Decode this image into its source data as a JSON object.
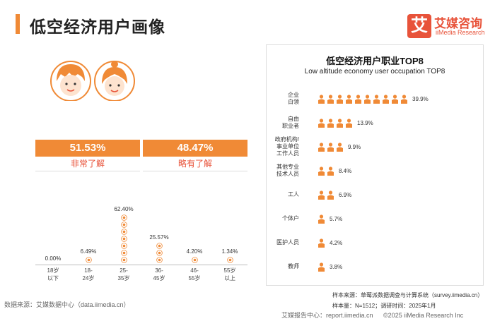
{
  "header": {
    "title": "低空经济用户画像",
    "logo_mark": "艾",
    "logo_cn": "艾媒咨询",
    "logo_en": "iiMedia Research",
    "accent": "#f08a36",
    "brand": "#e8533a"
  },
  "awareness": [
    {
      "value": "51.53%",
      "label": "非常了解"
    },
    {
      "value": "48.47%",
      "label": "略有了解"
    }
  ],
  "age": {
    "groups": [
      {
        "label1": "18岁",
        "label2": "以下",
        "pct": "0.00%",
        "value": 0.0
      },
      {
        "label1": "18-",
        "label2": "24岁",
        "pct": "6.49%",
        "value": 6.49
      },
      {
        "label1": "25-",
        "label2": "35岁",
        "pct": "62.40%",
        "value": 62.4
      },
      {
        "label1": "36-",
        "label2": "45岁",
        "pct": "25.57%",
        "value": 25.57
      },
      {
        "label1": "46-",
        "label2": "55岁",
        "pct": "4.20%",
        "value": 4.2
      },
      {
        "label1": "55岁",
        "label2": "以上",
        "pct": "1.34%",
        "value": 1.34
      }
    ]
  },
  "source": "数据来源：艾媒数据中心（data.iimedia.cn）",
  "occupation": {
    "title": "低空经济用户职业TOP8",
    "subtitle": "Low altitude economy user occupation TOP8",
    "rows": [
      {
        "label": "企业\n白领",
        "pct": "39.9%",
        "value": 39.9
      },
      {
        "label": "自由\n职业者",
        "pct": "13.9%",
        "value": 13.9
      },
      {
        "label": "政府机构/\n事业单位\n工作人员",
        "pct": "9.9%",
        "value": 9.9
      },
      {
        "label": "其他专业\n技术人员",
        "pct": "8.4%",
        "value": 8.4
      },
      {
        "label": "工人",
        "pct": "6.9%",
        "value": 6.9
      },
      {
        "label": "个体户",
        "pct": "5.7%",
        "value": 5.7
      },
      {
        "label": "医护人员",
        "pct": "4.2%",
        "value": 4.2
      },
      {
        "label": "教师",
        "pct": "3.8%",
        "value": 3.8
      }
    ]
  },
  "footer": {
    "sample_source": "样本来源：草莓派数据调查与计算系统（survey.iimedia.cn）",
    "sample_size": "样本量：N=1512；调研时间：2025年1月",
    "bottom_left": "艾媒报告中心：report.iimedia.cn",
    "bottom_right": "©2025  iiMedia Research Inc"
  }
}
